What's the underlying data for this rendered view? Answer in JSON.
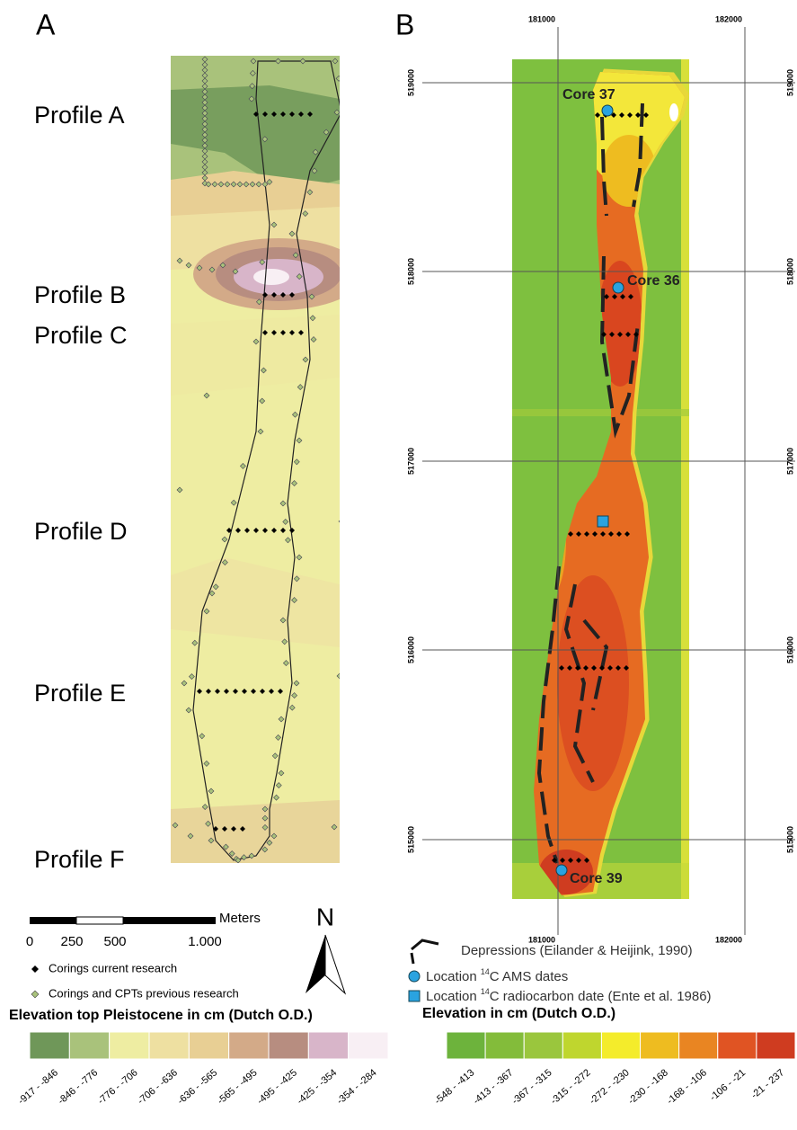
{
  "panel_a": {
    "label": "A",
    "profiles": [
      "Profile A",
      "Profile B",
      "Profile C",
      "Profile D",
      "Profile E",
      "Profile F"
    ],
    "scale_bar": {
      "unit": "Meters",
      "ticks": [
        "0",
        "250",
        "500",
        "1.000"
      ]
    },
    "north": "N",
    "legend": {
      "items": [
        "Corings current research",
        "Corings and CPTs previous research"
      ],
      "title": "Elevation top Pleistocene in cm (Dutch O.D.)",
      "classes": [
        {
          "label": "-917 - -846",
          "color": "#6f9759"
        },
        {
          "label": "-846 - -776",
          "color": "#a9c27b"
        },
        {
          "label": "-776 - -706",
          "color": "#eeeda2"
        },
        {
          "label": "-706 - -636",
          "color": "#eee0a1"
        },
        {
          "label": "-636 - -565",
          "color": "#e8cf94"
        },
        {
          "label": "-565 - -495",
          "color": "#d3aa88"
        },
        {
          "label": "-495 - -425",
          "color": "#b78d80"
        },
        {
          "label": "-425 - -354",
          "color": "#d8b5c9"
        },
        {
          "label": "-354 - -284",
          "color": "#f8eff4"
        }
      ]
    }
  },
  "panel_b": {
    "label": "B",
    "grid": {
      "x_labels": [
        "181000",
        "182000"
      ],
      "y_labels": [
        "519000",
        "518000",
        "517000",
        "516000",
        "515000"
      ]
    },
    "cores": [
      "Core 37",
      "Core 36",
      "Core 39"
    ],
    "legend": {
      "depressions": "Depressions (Eilander & Heijink, 1990)",
      "ams": {
        "before": "Location",
        "sup": "14",
        "after": "C AMS dates"
      },
      "radiocarbon": {
        "before": "Location",
        "sup": "14",
        "after": "C radiocarbon date (Ente et al. 1986)"
      },
      "title": "Elevation in cm (Dutch O.D.)",
      "classes": [
        {
          "label": "-548 - -413",
          "color": "#6db33c"
        },
        {
          "label": "-413 - -367",
          "color": "#83bc3a"
        },
        {
          "label": "-367 - -315",
          "color": "#9ac63d"
        },
        {
          "label": "-315 - -272",
          "color": "#bfd62e"
        },
        {
          "label": "-272 - -230",
          "color": "#f4ec2b"
        },
        {
          "label": "-230 - -168",
          "color": "#eebc20"
        },
        {
          "label": "-168 - -106",
          "color": "#e98522"
        },
        {
          "label": "-106 - -21",
          "color": "#e05423"
        },
        {
          "label": "-21 - 237",
          "color": "#cf3c20"
        }
      ]
    }
  }
}
